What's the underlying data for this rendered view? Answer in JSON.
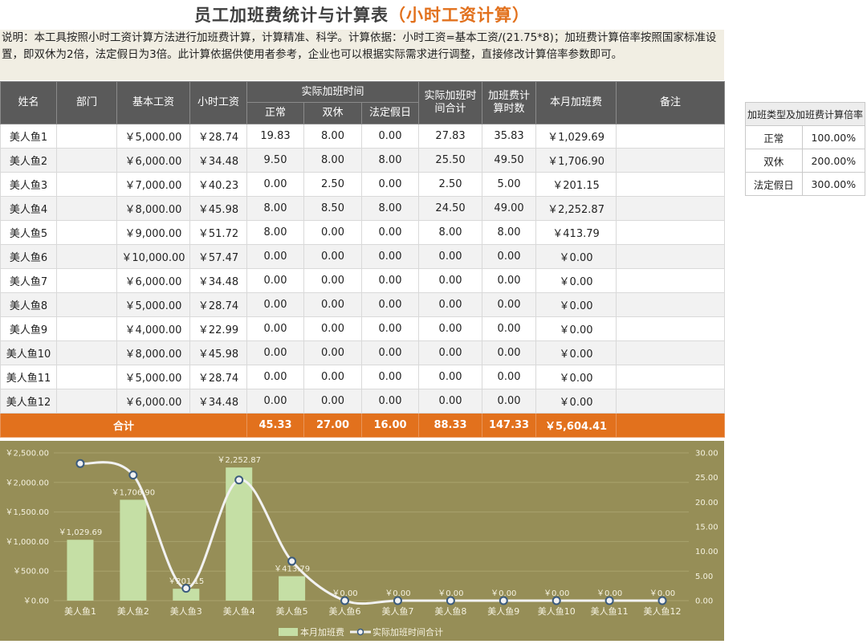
{
  "title": {
    "main": "员工加班费统计与计算表",
    "accent": "（小时工资计算）"
  },
  "description": "说明：本工具按照小时工资计算方法进行加班费计算，计算精准、科学。计算依据：小时工资=基本工资/(21.75*8)；加班费计算倍率按照国家标准设置，即双休为2倍，法定假日为3倍。此计算依据供使用者参考，企业也可以根据实际需求进行调整，直接修改计算倍率参数即可。",
  "table": {
    "headers": {
      "name": "姓名",
      "dept": "部门",
      "base": "基本工资",
      "hourly": "小时工资",
      "actual_group": "实际加班时间",
      "normal": "正常",
      "weekend": "双休",
      "holiday": "法定假日",
      "total_hours": "实际加班时间合计",
      "pay_hours": "加班费计算时数",
      "month_pay": "本月加班费",
      "note": "备注"
    },
    "rows": [
      [
        "美人鱼1",
        "",
        "￥5,000.00",
        "￥28.74",
        "19.83",
        "8.00",
        "0.00",
        "27.83",
        "35.83",
        "￥1,029.69",
        ""
      ],
      [
        "美人鱼2",
        "",
        "￥6,000.00",
        "￥34.48",
        "9.50",
        "8.00",
        "8.00",
        "25.50",
        "49.50",
        "￥1,706.90",
        ""
      ],
      [
        "美人鱼3",
        "",
        "￥7,000.00",
        "￥40.23",
        "0.00",
        "2.50",
        "0.00",
        "2.50",
        "5.00",
        "￥201.15",
        ""
      ],
      [
        "美人鱼4",
        "",
        "￥8,000.00",
        "￥45.98",
        "8.00",
        "8.50",
        "8.00",
        "24.50",
        "49.00",
        "￥2,252.87",
        ""
      ],
      [
        "美人鱼5",
        "",
        "￥9,000.00",
        "￥51.72",
        "8.00",
        "0.00",
        "0.00",
        "8.00",
        "8.00",
        "￥413.79",
        ""
      ],
      [
        "美人鱼6",
        "",
        "￥10,000.00",
        "￥57.47",
        "0.00",
        "0.00",
        "0.00",
        "0.00",
        "0.00",
        "￥0.00",
        ""
      ],
      [
        "美人鱼7",
        "",
        "￥6,000.00",
        "￥34.48",
        "0.00",
        "0.00",
        "0.00",
        "0.00",
        "0.00",
        "￥0.00",
        ""
      ],
      [
        "美人鱼8",
        "",
        "￥5,000.00",
        "￥28.74",
        "0.00",
        "0.00",
        "0.00",
        "0.00",
        "0.00",
        "￥0.00",
        ""
      ],
      [
        "美人鱼9",
        "",
        "￥4,000.00",
        "￥22.99",
        "0.00",
        "0.00",
        "0.00",
        "0.00",
        "0.00",
        "￥0.00",
        ""
      ],
      [
        "美人鱼10",
        "",
        "￥8,000.00",
        "￥45.98",
        "0.00",
        "0.00",
        "0.00",
        "0.00",
        "0.00",
        "￥0.00",
        ""
      ],
      [
        "美人鱼11",
        "",
        "￥5,000.00",
        "￥28.74",
        "0.00",
        "0.00",
        "0.00",
        "0.00",
        "0.00",
        "￥0.00",
        ""
      ],
      [
        "美人鱼12",
        "",
        "￥6,000.00",
        "￥34.48",
        "0.00",
        "0.00",
        "0.00",
        "0.00",
        "0.00",
        "￥0.00",
        ""
      ]
    ],
    "totals": {
      "label": "合计",
      "normal": "45.33",
      "weekend": "27.00",
      "holiday": "16.00",
      "total_hours": "88.33",
      "pay_hours": "147.33",
      "month_pay": "￥5,604.41",
      "note": ""
    }
  },
  "rates": {
    "header": "加班类型及加班费计算倍率",
    "rows": [
      [
        "正常",
        "100.00%"
      ],
      [
        "双休",
        "200.00%"
      ],
      [
        "法定假日",
        "300.00%"
      ]
    ]
  },
  "colors": {
    "header": "#5A5A5A",
    "total_row": "#E2711D",
    "chart_bg": "#968E57",
    "bar": "#C5DFA5",
    "line": "#F2F2F2",
    "marker": "#3B5B7E"
  },
  "chart_data": {
    "type": "bar",
    "categories": [
      "美人鱼1",
      "美人鱼2",
      "美人鱼3",
      "美人鱼4",
      "美人鱼5",
      "美人鱼6",
      "美人鱼7",
      "美人鱼8",
      "美人鱼9",
      "美人鱼10",
      "美人鱼11",
      "美人鱼12"
    ],
    "series": [
      {
        "name": "本月加班费",
        "type": "bar",
        "axis": "left",
        "values": [
          1029.69,
          1706.9,
          201.15,
          2252.87,
          413.79,
          0,
          0,
          0,
          0,
          0,
          0,
          0
        ],
        "labels": [
          "￥1,029.69",
          "￥1,706.90",
          "￥201.15",
          "￥2,252.87",
          "￥413.79",
          "￥0.00",
          "￥0.00",
          "￥0.00",
          "￥0.00",
          "￥0.00",
          "￥0.00",
          "￥0.00"
        ]
      },
      {
        "name": "实际加班时间合计",
        "type": "line",
        "smooth": true,
        "axis": "right",
        "values": [
          27.83,
          25.5,
          2.5,
          24.5,
          8.0,
          0,
          0,
          0,
          0,
          0,
          0,
          0
        ]
      }
    ],
    "ylim_left": [
      0,
      2500
    ],
    "yticks_left": [
      "￥0.00",
      "￥500.00",
      "￥1,000.00",
      "￥1,500.00",
      "￥2,000.00",
      "￥2,500.00"
    ],
    "ylim_right": [
      0,
      30
    ],
    "yticks_right": [
      "0.00",
      "5.00",
      "10.00",
      "15.00",
      "20.00",
      "25.00",
      "30.00"
    ],
    "legend": "bottom"
  }
}
